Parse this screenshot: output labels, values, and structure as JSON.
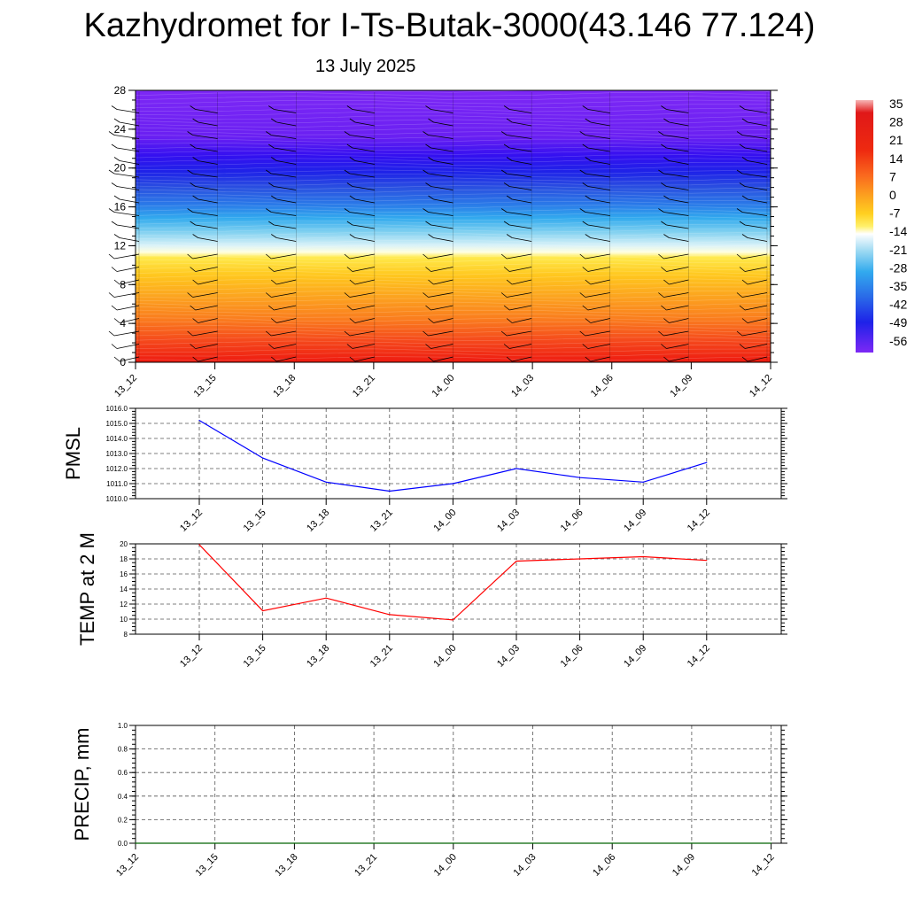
{
  "title": "Kazhydromet for I-Ts-Butak-3000(43.146 77.124)",
  "subtitle": "13 July 2025",
  "time_labels": [
    "13_12",
    "13_15",
    "13_18",
    "13_21",
    "14_00",
    "14_03",
    "14_06",
    "14_09",
    "14_12"
  ],
  "colorbar": {
    "labels": [
      "35",
      "28",
      "21",
      "14",
      "7",
      "0",
      "-7",
      "-14",
      "-21",
      "-28",
      "-35",
      "-42",
      "-49",
      "-56"
    ]
  },
  "chart_data": [
    {
      "type": "heatmap",
      "title": "Kazhydromet for I-Ts-Butak-3000(43.146 77.124)",
      "subtitle": "13 July 2025",
      "x": [
        "13_12",
        "13_15",
        "13_18",
        "13_21",
        "14_00",
        "14_03",
        "14_06",
        "14_09",
        "14_12"
      ],
      "ylim": [
        0,
        28
      ],
      "yticks": [
        "0",
        "4",
        "8",
        "12",
        "16",
        "20",
        "24",
        "28"
      ],
      "color_levels": [
        35,
        28,
        21,
        14,
        7,
        0,
        -7,
        -14,
        -21,
        -28,
        -35,
        -42,
        -49,
        -56
      ],
      "grid": false
    },
    {
      "type": "line",
      "ylabel": "PMSL",
      "x": [
        "13_12",
        "13_15",
        "13_18",
        "13_21",
        "14_00",
        "14_03",
        "14_06",
        "14_09",
        "14_12"
      ],
      "values": [
        1015.2,
        1012.7,
        1011.1,
        1010.5,
        1011.0,
        1012.0,
        1011.4,
        1011.1,
        1012.4
      ],
      "ylim": [
        1010.0,
        1016.0
      ],
      "yticks": [
        "1010.0",
        "1011.0",
        "1012.0",
        "1013.0",
        "1014.0",
        "1015.0",
        "1016.0"
      ],
      "color": "#0000ff",
      "grid": true
    },
    {
      "type": "line",
      "ylabel": "TEMP at 2 M",
      "x": [
        "13_12",
        "13_15",
        "13_18",
        "13_21",
        "14_00",
        "14_03",
        "14_06",
        "14_09",
        "14_12"
      ],
      "values": [
        19.9,
        11.1,
        12.8,
        10.6,
        9.9,
        17.7,
        18.0,
        18.3,
        17.8
      ],
      "ylim": [
        8,
        20
      ],
      "yticks": [
        "8",
        "10",
        "12",
        "14",
        "16",
        "18",
        "20"
      ],
      "color": "#ff0000",
      "grid": true
    },
    {
      "type": "line",
      "ylabel": "PRECIP, mm",
      "x": [
        "13_12",
        "13_15",
        "13_18",
        "13_21",
        "14_00",
        "14_03",
        "14_06",
        "14_09",
        "14_12"
      ],
      "values": [
        0,
        0,
        0,
        0,
        0,
        0,
        0,
        0,
        0
      ],
      "ylim": [
        0,
        1.0
      ],
      "yticks": [
        "0.0",
        "0.2",
        "0.4",
        "0.6",
        "0.8",
        "1.0"
      ],
      "color": "#006400",
      "grid": true
    }
  ]
}
